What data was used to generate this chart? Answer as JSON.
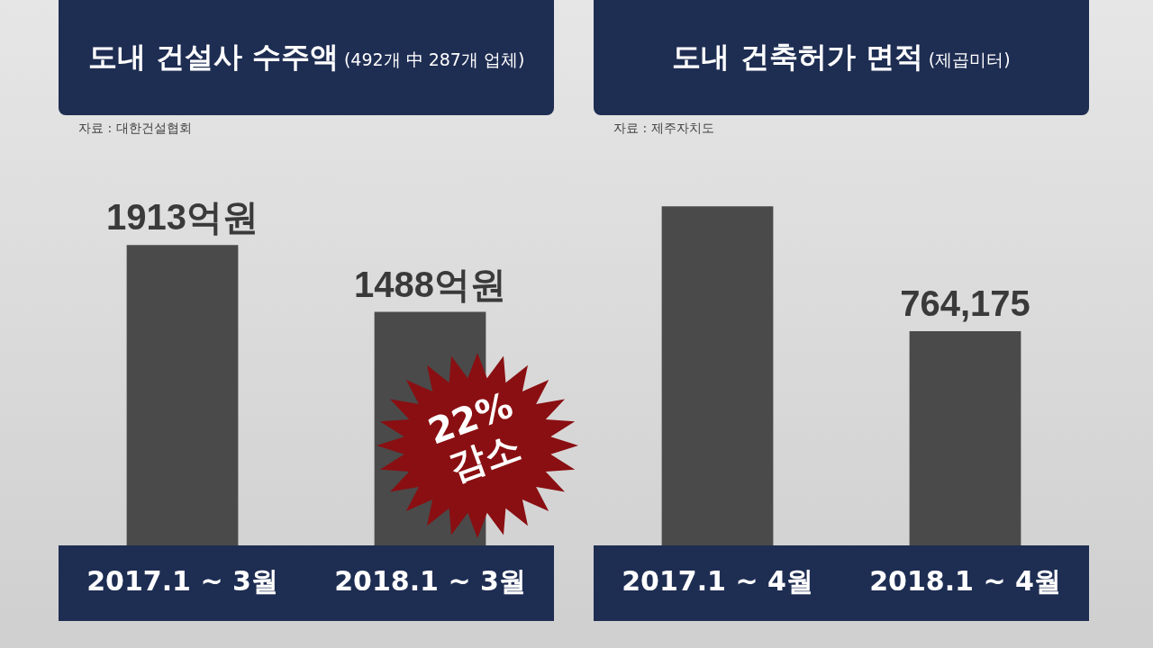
{
  "chart_data": [
    {
      "type": "bar",
      "title": "도내 건설사 수주액",
      "subtitle": "(492개 中 287개 업체)",
      "categories": [
        "2017.1 ~ 3월",
        "2018.1 ~ 3월"
      ],
      "values": [
        1913,
        1488
      ],
      "color": "#4a4a4a",
      "value_labels": [
        "1913억원",
        "1488억원"
      ],
      "tick_labels": "x",
      "grid": false,
      "legend": false,
      "annotations": [
        "자료 : 대한건설협회",
        "22% 감소"
      ]
    },
    {
      "type": "bar",
      "title": "도내 건축허가 면적",
      "subtitle": "(제곱미터)",
      "categories": [
        "2017.1 ~ 4월",
        "2018.1 ~ 4월"
      ],
      "values": [
        1210000,
        764175
      ],
      "color": "#4a4a4a",
      "value_labels": [
        null,
        "764,175"
      ],
      "tick_labels": "x",
      "grid": false,
      "legend": false,
      "annotations": [
        "자료 : 제주자치도"
      ]
    }
  ]
}
